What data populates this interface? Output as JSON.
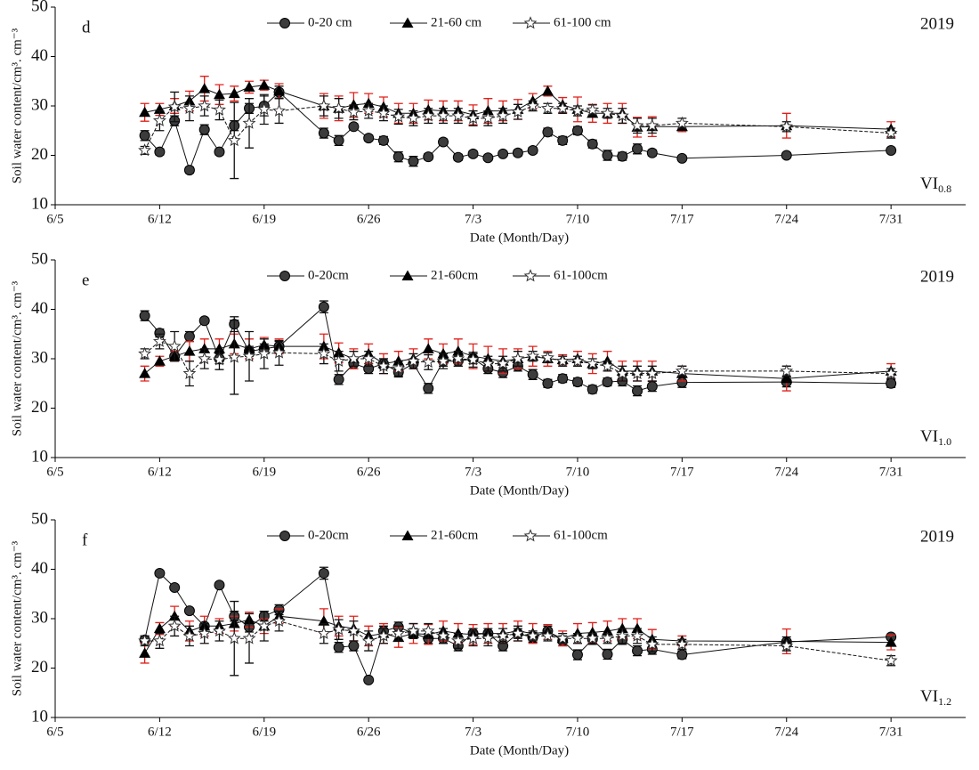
{
  "chart_data": [
    {
      "type": "line",
      "label": "d",
      "year": "2019",
      "annotation": "VI",
      "annotation_sub": "0.8",
      "x_label": "Date (Month/Day)",
      "y_label": "Soil water content/cm³. cm⁻³",
      "x": [
        "6/11",
        "6/12",
        "6/13",
        "6/14",
        "6/15",
        "6/16",
        "6/17",
        "6/18",
        "6/19",
        "6/20",
        "6/23",
        "6/24",
        "6/25",
        "6/26",
        "6/27",
        "6/28",
        "6/29",
        "6/30",
        "7/1",
        "7/2",
        "7/3",
        "7/4",
        "7/5",
        "7/6",
        "7/7",
        "7/8",
        "7/9",
        "7/10",
        "7/11",
        "7/12",
        "7/13",
        "7/14",
        "7/15",
        "7/17",
        "7/24",
        "7/31"
      ],
      "xlim": [
        "6/5",
        "8/5"
      ],
      "xticks": [
        "6/5",
        "6/12",
        "6/19",
        "6/26",
        "7/3",
        "7/10",
        "7/17",
        "7/24",
        "7/31"
      ],
      "ylim": [
        10,
        50
      ],
      "yticks": [
        10,
        20,
        30,
        40,
        50
      ],
      "series": [
        {
          "name": "0-20 cm",
          "marker": "circle",
          "color": "#111",
          "error_color": "#111",
          "values": [
            24,
            20.7,
            27,
            17,
            25.2,
            20.7,
            26,
            29.5,
            30,
            32.8,
            24.5,
            23,
            25.8,
            23.5,
            23,
            19.7,
            18.8,
            19.7,
            22.7,
            19.6,
            20.3,
            19.5,
            20.3,
            20.5,
            21,
            24.7,
            23,
            25,
            22.3,
            20,
            19.8,
            21.3,
            20.5,
            19.4,
            20,
            21
          ],
          "errors": [
            1,
            0.6,
            1,
            0.6,
            1,
            0.6,
            1,
            1,
            2,
            1.2,
            1,
            1,
            0.6,
            0.6,
            0.8,
            1,
            1,
            0.6,
            0.6,
            0.6,
            0.6,
            0.5,
            0.5,
            0.6,
            0.6,
            0.8,
            0.8,
            0.8,
            0.8,
            1,
            0.8,
            1,
            0.6,
            0.5,
            0.5,
            0.5
          ]
        },
        {
          "name": "21-60 cm",
          "marker": "triangle",
          "color": "#111",
          "error_color": "#e0201b",
          "values": [
            28.7,
            29.3,
            30,
            31,
            33.5,
            32.3,
            32.5,
            33.8,
            34.2,
            33,
            30,
            29.5,
            30.2,
            30.5,
            29.8,
            28.5,
            28.5,
            29.2,
            29,
            29,
            28.2,
            29,
            29,
            29.3,
            31,
            33,
            30.2,
            29.3,
            28.5,
            28.5,
            28.5,
            25.7,
            25.8,
            25.8,
            26,
            25.3
          ],
          "errors": [
            1.8,
            1.2,
            1.5,
            2,
            2.5,
            2,
            1.5,
            1.2,
            1,
            1.5,
            2.5,
            2.5,
            2.5,
            2,
            2,
            2,
            2,
            2,
            2,
            2,
            2,
            2.5,
            2,
            2,
            1.5,
            1,
            1.5,
            2.5,
            1.8,
            2,
            2,
            2,
            2,
            1,
            2.5,
            1.5
          ]
        },
        {
          "name": "61-100 cm",
          "marker": "star",
          "color": "#111",
          "error_color": "#111",
          "values": [
            21,
            27,
            29.8,
            29.5,
            30,
            29.2,
            23,
            26.5,
            29.3,
            29,
            30,
            29.5,
            28.7,
            29,
            28.5,
            27.8,
            27.5,
            28,
            28,
            28,
            27.5,
            27.5,
            28,
            28.8,
            30,
            29.5,
            29.5,
            29,
            29.2,
            28.5,
            28,
            26,
            26,
            26.5,
            25.8,
            24.5
          ],
          "errors": [
            0.8,
            2,
            3,
            2.5,
            2,
            2,
            7.7,
            5,
            3,
            2.5,
            2,
            2,
            1.5,
            1.5,
            1.5,
            1.5,
            1.5,
            1.5,
            1.5,
            1.5,
            1.5,
            1.5,
            1.5,
            1.5,
            1,
            1,
            1,
            1,
            1,
            1,
            1.5,
            1.5,
            1.5,
            1,
            1,
            1
          ]
        }
      ]
    },
    {
      "type": "line",
      "label": "e",
      "year": "2019",
      "annotation": "VI",
      "annotation_sub": "1.0",
      "x_label": "Date (Month/Day)",
      "y_label": "Soil water content/cm³. cm⁻³",
      "x": [
        "6/11",
        "6/12",
        "6/13",
        "6/14",
        "6/15",
        "6/16",
        "6/17",
        "6/18",
        "6/19",
        "6/20",
        "6/23",
        "6/24",
        "6/25",
        "6/26",
        "6/27",
        "6/28",
        "6/29",
        "6/30",
        "7/1",
        "7/2",
        "7/3",
        "7/4",
        "7/5",
        "7/6",
        "7/7",
        "7/8",
        "7/9",
        "7/10",
        "7/11",
        "7/12",
        "7/13",
        "7/14",
        "7/15",
        "7/17",
        "7/24",
        "7/31"
      ],
      "xlim": [
        "6/5",
        "8/5"
      ],
      "xticks": [
        "6/5",
        "6/12",
        "6/19",
        "6/26",
        "7/3",
        "7/10",
        "7/17",
        "7/24",
        "7/31"
      ],
      "ylim": [
        10,
        50
      ],
      "yticks": [
        10,
        20,
        30,
        40,
        50
      ],
      "series": [
        {
          "name": "0-20cm",
          "marker": "circle",
          "color": "#111",
          "error_color": "#111",
          "values": [
            38.7,
            35.2,
            30.5,
            34.5,
            37.7,
            30,
            37,
            31.5,
            32,
            32.5,
            40.5,
            25.8,
            29,
            28,
            29,
            27.3,
            29,
            24,
            29.5,
            29.5,
            30,
            28,
            27.2,
            28.5,
            26.8,
            25,
            26,
            25.3,
            23.8,
            25.3,
            25.5,
            23.5,
            24.4,
            25.2,
            25.3,
            25
          ],
          "errors": [
            1,
            0.8,
            1,
            1,
            0.5,
            1,
            1.5,
            1,
            1,
            1,
            1.2,
            1,
            1,
            1,
            1,
            1,
            1,
            1,
            1,
            1,
            1,
            1,
            1,
            1,
            1,
            0.8,
            0.8,
            0.8,
            0.8,
            0.8,
            1,
            1,
            1,
            1,
            1,
            0.8
          ]
        },
        {
          "name": "21-60cm",
          "marker": "triangle",
          "color": "#111",
          "error_color": "#e0201b",
          "values": [
            27,
            29.5,
            30.5,
            31.5,
            32,
            32,
            33,
            32,
            32.8,
            32.5,
            32.5,
            31.2,
            30,
            31,
            29,
            29.5,
            30,
            32,
            31,
            31.5,
            30.5,
            30,
            29.5,
            30,
            30.5,
            30,
            29.8,
            30,
            29,
            29.5,
            27.5,
            27.5,
            27.5,
            27,
            26,
            27.5
          ],
          "errors": [
            1.5,
            1,
            1,
            2,
            2,
            2,
            2,
            2,
            1.5,
            1.5,
            2.5,
            2,
            2,
            2,
            2,
            2,
            2,
            2,
            2,
            2.5,
            2.5,
            2.5,
            2.5,
            2,
            2,
            1.5,
            1,
            1.5,
            2,
            2,
            2,
            2,
            2,
            1.5,
            2.5,
            1.5
          ]
        },
        {
          "name": "61-100cm",
          "marker": "star",
          "color": "#111",
          "error_color": "#111",
          "values": [
            31,
            33.5,
            32.5,
            27,
            30,
            29.8,
            30.3,
            30.5,
            31,
            31.2,
            31,
            29.5,
            30,
            30,
            28.5,
            28,
            29.5,
            29.3,
            29.5,
            30,
            29.8,
            29,
            29,
            30,
            30.5,
            30.2,
            29.5,
            29.5,
            29,
            28.5,
            27,
            27,
            27,
            27.5,
            27.5,
            27
          ],
          "errors": [
            1,
            1.5,
            3,
            2.5,
            2,
            2,
            7.5,
            5,
            3,
            2.5,
            2,
            2,
            1.5,
            1.5,
            1.5,
            1.5,
            1.5,
            1.5,
            1.5,
            1.5,
            1.5,
            1.5,
            1.5,
            1.5,
            1,
            1,
            1,
            1,
            1,
            1,
            1.5,
            1.5,
            1.5,
            1,
            1,
            1
          ]
        }
      ]
    },
    {
      "type": "line",
      "label": "f",
      "year": "2019",
      "annotation": "VI",
      "annotation_sub": "1.2",
      "x_label": "Date (Month/Day)",
      "y_label": "Soil water content/cm³. cm⁻³",
      "x": [
        "6/11",
        "6/12",
        "6/13",
        "6/14",
        "6/15",
        "6/16",
        "6/17",
        "6/18",
        "6/19",
        "6/20",
        "6/23",
        "6/24",
        "6/25",
        "6/26",
        "6/27",
        "6/28",
        "6/29",
        "6/30",
        "7/1",
        "7/2",
        "7/3",
        "7/4",
        "7/5",
        "7/6",
        "7/7",
        "7/8",
        "7/9",
        "7/10",
        "7/11",
        "7/12",
        "7/13",
        "7/14",
        "7/15",
        "7/17",
        "7/24",
        "7/31"
      ],
      "xlim": [
        "6/5",
        "8/5"
      ],
      "xticks": [
        "6/5",
        "6/12",
        "6/19",
        "6/26",
        "7/3",
        "7/10",
        "7/17",
        "7/24",
        "7/31"
      ],
      "ylim": [
        10,
        50
      ],
      "yticks": [
        10,
        20,
        30,
        40,
        50
      ],
      "series": [
        {
          "name": "0-20cm",
          "marker": "circle",
          "color": "#111",
          "error_color": "#111",
          "values": [
            25.7,
            39.2,
            36.3,
            31.6,
            28.5,
            36.8,
            30.5,
            28.3,
            30.5,
            31.8,
            39.2,
            24.2,
            24.5,
            17.6,
            27.5,
            28.3,
            27,
            26,
            26,
            24.5,
            27,
            27,
            24.5,
            27,
            26.2,
            27.5,
            25.5,
            22.7,
            25.8,
            22.8,
            25.8,
            23.5,
            23.8,
            22.7,
            25.3,
            26.3
          ],
          "errors": [
            0.8,
            0.5,
            0.5,
            0.5,
            0.5,
            0.5,
            1,
            1,
            1,
            1,
            1.2,
            1,
            1,
            0.5,
            1,
            1,
            1,
            1,
            1,
            1,
            1,
            1,
            1,
            1,
            1,
            1,
            1,
            1,
            1,
            1,
            1,
            1,
            1,
            0.8,
            1,
            0.5
          ]
        },
        {
          "name": "21-60cm",
          "marker": "triangle",
          "color": "#111",
          "error_color": "#e0201b",
          "values": [
            23,
            28,
            30.5,
            27.5,
            28.5,
            28.5,
            29,
            29.8,
            28.5,
            30.5,
            29.5,
            28.5,
            28,
            26.5,
            27,
            26.2,
            27,
            26.8,
            27.5,
            27,
            26.8,
            27,
            27,
            27.5,
            27,
            27.3,
            26,
            27,
            27.2,
            27.5,
            28,
            28,
            25.8,
            25.5,
            25.4,
            25.2
          ],
          "errors": [
            2,
            1.2,
            2,
            2,
            2,
            1.5,
            1.5,
            1.5,
            1.5,
            1.5,
            2.5,
            2,
            2.5,
            2,
            2,
            2,
            2,
            2,
            2,
            2,
            2,
            2,
            2,
            2,
            2,
            1.5,
            1.5,
            2,
            2,
            2,
            2,
            2,
            2,
            1,
            2.5,
            1.5
          ]
        },
        {
          "name": "61-100cm",
          "marker": "star",
          "color": "#111",
          "error_color": "#111",
          "values": [
            25.5,
            25.5,
            28.5,
            26.5,
            27,
            27.5,
            26,
            26,
            28.5,
            29.5,
            27,
            27.8,
            27.5,
            25.5,
            26.5,
            27,
            27.5,
            27.5,
            26.5,
            25.5,
            26,
            26,
            26.5,
            27,
            26.5,
            26.5,
            26,
            26,
            26,
            26,
            26.5,
            26.5,
            24.8,
            24.8,
            24.5,
            21.5
          ],
          "errors": [
            1,
            1.5,
            2,
            2,
            2,
            2,
            7.5,
            5,
            3,
            2,
            2,
            2,
            2,
            2,
            1.5,
            1.5,
            1.5,
            1.5,
            1.5,
            1.5,
            1.5,
            1.5,
            1.5,
            1.5,
            1,
            1,
            1,
            1,
            1,
            1,
            1.5,
            1.5,
            1.5,
            1,
            1,
            1
          ]
        }
      ]
    }
  ]
}
